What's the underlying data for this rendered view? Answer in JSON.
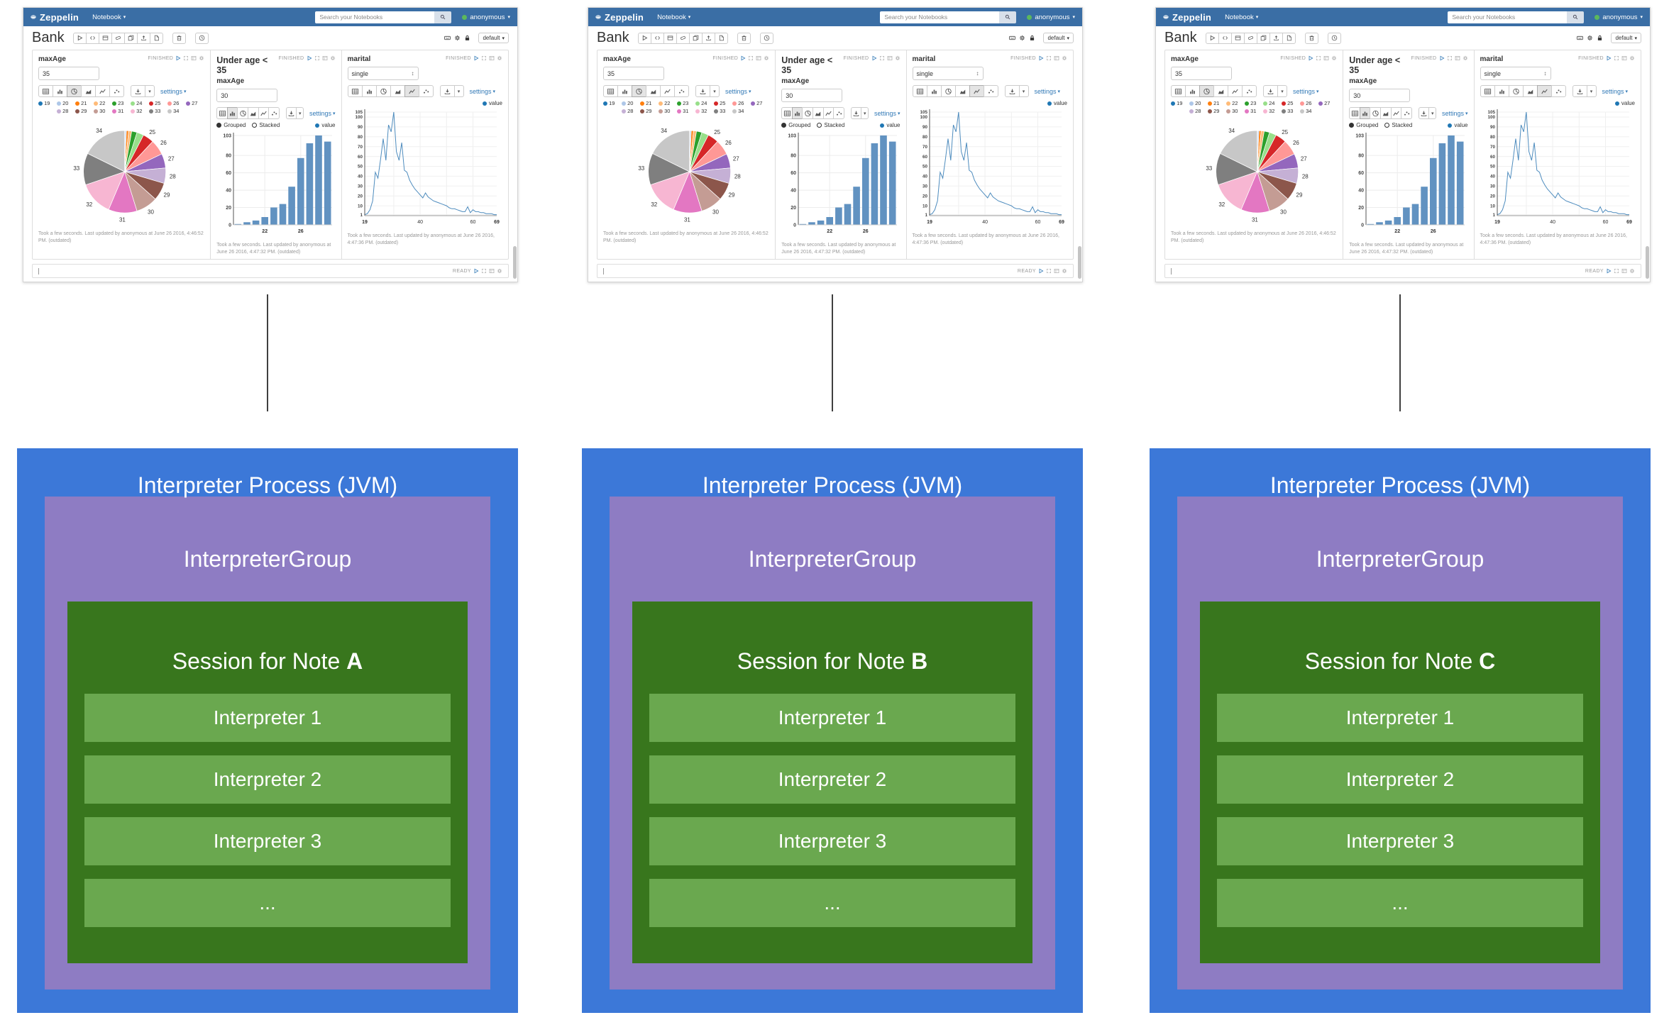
{
  "colors": {
    "navbar_bg": "#3a6ea5",
    "link": "#337ab7",
    "user_status_dot": "#5cb85c",
    "bar_fill": "#6192c1",
    "line_stroke": "#4e8cbe",
    "legend_value_dot": "#1f77b4",
    "connector": "#3f3f3f",
    "process_box": "#3c78d8",
    "group_box": "#8e7cc3",
    "session_box": "#38761d",
    "interpreter_row": "#6aa84f"
  },
  "columns": [
    {
      "note_letter": "A"
    },
    {
      "note_letter": "B"
    },
    {
      "note_letter": "C"
    }
  ],
  "screenshot": {
    "navbar": {
      "brand": "Zeppelin",
      "notebook_menu": "Notebook",
      "search_placeholder": "Search your Notebooks",
      "user": "anonymous"
    },
    "note_header": {
      "title": "Bank",
      "toolbar_icons": [
        "run-all",
        "hide-code",
        "hide-output",
        "clear-output",
        "clone-note",
        "export-note",
        "commit"
      ],
      "trash_icon": "trash",
      "scheduler_icon": "scheduler",
      "right_icons": [
        "keyboard",
        "gear",
        "lock"
      ],
      "interpreter_binding_label": "default"
    },
    "chart_type_buttons": [
      "table",
      "bar",
      "pie",
      "area",
      "line",
      "scatter"
    ],
    "settings_label": "settings",
    "paragraph_status_icons": [
      "play",
      "expand",
      "editor",
      "gear"
    ],
    "paragraphs": [
      {
        "name": "max-age-pie",
        "label": "maxAge",
        "control": {
          "type": "input",
          "value": "35"
        },
        "status": "FINISHED",
        "selected_chart": "pie",
        "chart_index": 0,
        "footer": "Took a few seconds. Last updated by anonymous at June 26 2016, 4:46:52 PM. (outdated)"
      },
      {
        "name": "under-age-bar",
        "title": "Under age < 35",
        "label": "maxAge",
        "control": {
          "type": "input",
          "value": "30"
        },
        "status": "FINISHED",
        "selected_chart": "bar",
        "chart_index": 1,
        "footer": "Took a few seconds. Last updated by anonymous at June 26 2016, 4:47:32 PM. (outdated)"
      },
      {
        "name": "marital-line",
        "label": "marital",
        "control": {
          "type": "select",
          "value": "single"
        },
        "status": "FINISHED",
        "selected_chart": "line",
        "chart_index": 2,
        "footer": "Took a few seconds. Last updated by anonymous at June 26 2016, 4:47:36 PM. (outdated)"
      }
    ],
    "status_bar": {
      "status": "READY",
      "icons": [
        "play",
        "expand",
        "editor",
        "gear"
      ]
    }
  },
  "chart_data": [
    {
      "type": "pie",
      "title": "maxAge age distribution (age < 35)",
      "categories": [
        19,
        20,
        21,
        22,
        23,
        24,
        25,
        26,
        27,
        28,
        29,
        30,
        31,
        32,
        33,
        34
      ],
      "values": [
        2,
        5,
        9,
        12,
        22,
        28,
        44,
        62,
        58,
        62,
        72,
        88,
        115,
        138,
        128,
        182
      ],
      "colors": [
        "#1f77b4",
        "#aec7e8",
        "#ff7f0e",
        "#ffbb78",
        "#2ca02c",
        "#98df8a",
        "#d62728",
        "#ff9896",
        "#9467bd",
        "#c5b0d5",
        "#8c564b",
        "#c49c94",
        "#e377c2",
        "#f7b6d2",
        "#7f7f7f",
        "#c7c7c7"
      ],
      "legend_position": "top",
      "legend_rows": 2
    },
    {
      "type": "bar",
      "title": "Under age < 35 (maxAge 30)",
      "categories": [
        19,
        20,
        21,
        22,
        23,
        24,
        25,
        26,
        27,
        28,
        29
      ],
      "values": [
        1,
        3,
        5,
        9,
        20,
        24,
        44,
        77,
        94,
        103,
        96
      ],
      "series_label": "value",
      "modes": [
        "Grouped",
        "Stacked"
      ],
      "selected_mode": "Grouped",
      "ylim": [
        0,
        103
      ],
      "yticks": [
        103,
        80,
        60,
        40,
        20,
        0
      ],
      "xticks": [
        22,
        26
      ],
      "grid": true
    },
    {
      "type": "line",
      "title": "marital = single, count by age",
      "x": [
        19,
        20,
        21,
        22,
        23,
        24,
        25,
        26,
        27,
        28,
        29,
        30,
        31,
        32,
        33,
        34,
        35,
        36,
        37,
        38,
        39,
        40,
        41,
        42,
        43,
        44,
        45,
        46,
        47,
        48,
        49,
        50,
        51,
        52,
        53,
        54,
        55,
        56,
        57,
        58,
        59,
        60,
        61,
        62,
        63,
        64,
        65,
        66,
        67,
        68,
        69
      ],
      "values": [
        1,
        2,
        6,
        15,
        44,
        38,
        57,
        78,
        56,
        92,
        85,
        105,
        65,
        56,
        74,
        46,
        44,
        36,
        31,
        27,
        24,
        21,
        18,
        23,
        19,
        17,
        15,
        14,
        13,
        12,
        11,
        10,
        8,
        7,
        7,
        6,
        5,
        4,
        4,
        9,
        3,
        6,
        4,
        4,
        3,
        3,
        2,
        2,
        2,
        1,
        1
      ],
      "series_label": "value",
      "ylim": [
        1,
        105
      ],
      "yticks": [
        105,
        100,
        90,
        80,
        70,
        60,
        50,
        40,
        30,
        20,
        10,
        1
      ],
      "xticks": [
        19,
        40,
        60,
        69
      ],
      "grid": true
    }
  ],
  "diagram": {
    "process_title": "Interpreter Process (JVM)",
    "group_title": "InterpreterGroup",
    "session_prefix": "Session for Note ",
    "interpreters": [
      "Interpreter 1",
      "Interpreter 2",
      "Interpreter 3",
      "..."
    ]
  }
}
